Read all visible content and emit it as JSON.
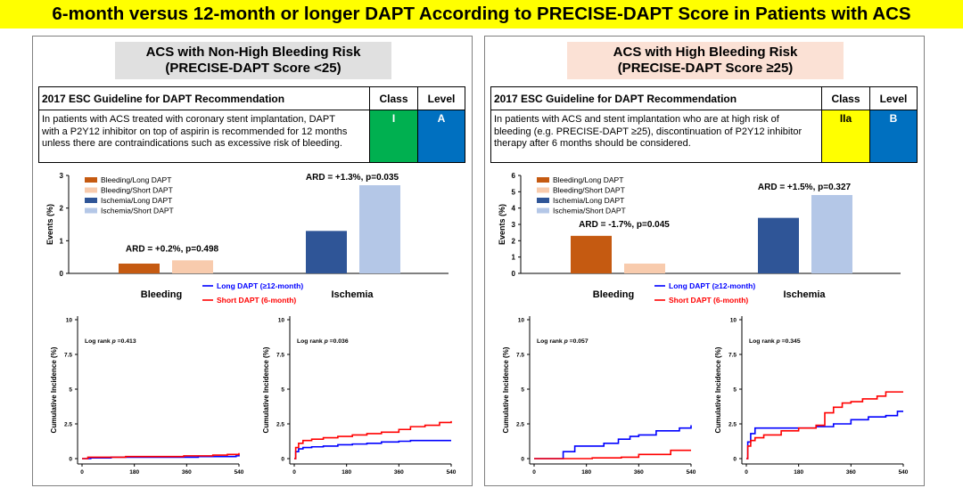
{
  "title": "6-month versus 12-month or longer DAPT According to PRECISE-DAPT Score in Patients with ACS",
  "colors": {
    "bleed_long": "#c55a11",
    "bleed_short": "#f8cbad",
    "isch_long": "#2f5597",
    "isch_short": "#b4c7e7",
    "km_long": "#0000ff",
    "km_short": "#ff0000",
    "class_I": "#00b050",
    "class_IIa": "#ffff00",
    "level": "#0070c0"
  },
  "panels": [
    {
      "title_line1": "ACS with Non-High Bleeding Risk",
      "title_line2": "(PRECISE-DAPT Score <25)",
      "guideline": {
        "header": "2017 ESC Guideline for DAPT Recommendation",
        "class_header": "Class",
        "level_header": "Level",
        "text_lines": [
          "In patients with ACS treated with coronary stent implantation, DAPT",
          "with a P2Y12 inhibitor on top of aspirin is recommended for 12 months",
          "unless there are contraindications such as excessive risk of bleeding."
        ],
        "class_value": "I",
        "level_value": "A"
      }
    },
    {
      "title_line1": "ACS with High Bleeding Risk",
      "title_line2": "(PRECISE-DAPT Score ≥25)",
      "guideline": {
        "header": "2017 ESC Guideline for DAPT Recommendation",
        "class_header": "Class",
        "level_header": "Level",
        "text_lines": [
          "In patients with ACS and stent implantation who are at high risk of",
          "bleeding (e.g. PRECISE-DAPT ≥25), discontinuation of P2Y12 inhibitor",
          "therapy after 6 months should be considered."
        ],
        "class_value": "IIa",
        "level_value": "B"
      }
    }
  ],
  "chart_data": [
    {
      "type": "bar",
      "panel": 0,
      "ylabel": "Events (%)",
      "ylim": [
        0,
        3
      ],
      "yticks": [
        "0",
        "1",
        "2",
        "3"
      ],
      "categories": [
        "Bleeding",
        "Ischemia"
      ],
      "series": [
        {
          "name": "Bleeding/Long DAPT",
          "values": [
            0.3,
            null
          ]
        },
        {
          "name": "Bleeding/Short DAPT",
          "values": [
            0.4,
            null
          ]
        },
        {
          "name": "Ischemia/Long DAPT",
          "values": [
            null,
            1.3
          ]
        },
        {
          "name": "Ischemia/Short DAPT",
          "values": [
            null,
            2.7
          ]
        }
      ],
      "annotations": [
        "ARD = +0.2%, p=0.498",
        "ARD = +1.3%, p=0.035"
      ],
      "km_legend": [
        "Long DAPT (≥12-month)",
        "Short DAPT (6-month)"
      ]
    },
    {
      "type": "line",
      "panel": 0,
      "name": "bleeding-km",
      "ylabel": "Cumulative Incidence (%)",
      "ylim": [
        0,
        10
      ],
      "yticks": [
        "0",
        "2.5",
        "5",
        "7.5",
        "10"
      ],
      "xlim": [
        0,
        540
      ],
      "xticks": [
        "0",
        "180",
        "360",
        "540"
      ],
      "annotation_prefix": "Log rank ",
      "annotation_p": "p",
      "annotation_value": " =0.413",
      "series": [
        {
          "name": "Long DAPT (≥12-month)",
          "x": [
            0,
            30,
            100,
            200,
            300,
            400,
            500,
            530,
            540
          ],
          "y": [
            0,
            0.05,
            0.1,
            0.1,
            0.1,
            0.15,
            0.15,
            0.2,
            0.3
          ]
        },
        {
          "name": "Short DAPT (6-month)",
          "x": [
            0,
            20,
            60,
            150,
            250,
            350,
            400,
            450,
            500,
            540
          ],
          "y": [
            0,
            0.1,
            0.1,
            0.15,
            0.15,
            0.2,
            0.2,
            0.25,
            0.3,
            0.4
          ]
        }
      ]
    },
    {
      "type": "line",
      "panel": 0,
      "name": "ischemia-km",
      "ylabel": "Cumulative Incidence (%)",
      "ylim": [
        0,
        10
      ],
      "yticks": [
        "0",
        "2.5",
        "5",
        "7.5",
        "10"
      ],
      "xlim": [
        0,
        540
      ],
      "xticks": [
        "0",
        "180",
        "360",
        "540"
      ],
      "annotation_prefix": "Log rank ",
      "annotation_p": "p",
      "annotation_value": " =0.036",
      "series": [
        {
          "name": "Long DAPT (≥12-month)",
          "x": [
            0,
            5,
            15,
            30,
            60,
            100,
            150,
            200,
            250,
            300,
            360,
            400,
            450,
            500,
            540
          ],
          "y": [
            0,
            0.5,
            0.7,
            0.8,
            0.85,
            0.9,
            1.0,
            1.05,
            1.1,
            1.2,
            1.25,
            1.3,
            1.3,
            1.3,
            1.3
          ]
        },
        {
          "name": "Short DAPT (6-month)",
          "x": [
            0,
            5,
            15,
            30,
            60,
            100,
            150,
            200,
            250,
            300,
            360,
            400,
            450,
            500,
            540
          ],
          "y": [
            0,
            0.8,
            1.1,
            1.3,
            1.4,
            1.5,
            1.6,
            1.7,
            1.8,
            1.9,
            2.1,
            2.3,
            2.4,
            2.6,
            2.7
          ]
        }
      ]
    },
    {
      "type": "bar",
      "panel": 1,
      "ylabel": "Events (%)",
      "ylim": [
        0,
        6
      ],
      "yticks": [
        "0",
        "1",
        "2",
        "3",
        "4",
        "5",
        "6"
      ],
      "categories": [
        "Bleeding",
        "Ischemia"
      ],
      "series": [
        {
          "name": "Bleeding/Long DAPT",
          "values": [
            2.3,
            null
          ]
        },
        {
          "name": "Bleeding/Short DAPT",
          "values": [
            0.6,
            null
          ]
        },
        {
          "name": "Ischemia/Long DAPT",
          "values": [
            null,
            3.4
          ]
        },
        {
          "name": "Ischemia/Short DAPT",
          "values": [
            null,
            4.8
          ]
        }
      ],
      "annotations": [
        "ARD = -1.7%, p=0.045",
        "ARD = +1.5%, p=0.327"
      ],
      "km_legend": [
        "Long DAPT (≥12-month)",
        "Short DAPT (6-month)"
      ]
    },
    {
      "type": "line",
      "panel": 1,
      "name": "bleeding-km",
      "ylabel": "Cumulative Incidence (%)",
      "ylim": [
        0,
        10
      ],
      "yticks": [
        "0",
        "2.5",
        "5",
        "7.5",
        "10"
      ],
      "xlim": [
        0,
        540
      ],
      "xticks": [
        "0",
        "180",
        "360",
        "540"
      ],
      "annotation_prefix": "Log rank ",
      "annotation_p": "p",
      "annotation_value": " =0.057",
      "series": [
        {
          "name": "Long DAPT (≥12-month)",
          "x": [
            0,
            80,
            100,
            140,
            180,
            240,
            290,
            330,
            360,
            420,
            470,
            500,
            540
          ],
          "y": [
            0,
            0,
            0.5,
            0.9,
            0.9,
            1.1,
            1.4,
            1.6,
            1.7,
            2.0,
            2.0,
            2.2,
            2.4
          ]
        },
        {
          "name": "Short DAPT (6-month)",
          "x": [
            0,
            150,
            200,
            300,
            360,
            470,
            540
          ],
          "y": [
            0,
            0,
            0.05,
            0.1,
            0.3,
            0.6,
            0.6
          ]
        }
      ]
    },
    {
      "type": "line",
      "panel": 1,
      "name": "ischemia-km",
      "ylabel": "Cumulative Incidence (%)",
      "ylim": [
        0,
        10
      ],
      "yticks": [
        "0",
        "2.5",
        "5",
        "7.5",
        "10"
      ],
      "xlim": [
        0,
        540
      ],
      "xticks": [
        "0",
        "180",
        "360",
        "540"
      ],
      "annotation_prefix": "Log rank ",
      "annotation_p": "p",
      "annotation_value": " =0.345",
      "series": [
        {
          "name": "Long DAPT (≥12-month)",
          "x": [
            0,
            5,
            15,
            30,
            60,
            120,
            180,
            240,
            300,
            360,
            420,
            480,
            520,
            540
          ],
          "y": [
            0,
            1.2,
            1.8,
            2.2,
            2.2,
            2.2,
            2.2,
            2.3,
            2.5,
            2.8,
            3.0,
            3.1,
            3.4,
            3.4
          ]
        },
        {
          "name": "Short DAPT (6-month)",
          "x": [
            0,
            5,
            15,
            30,
            60,
            120,
            180,
            240,
            270,
            300,
            330,
            360,
            400,
            450,
            480,
            540
          ],
          "y": [
            0,
            0.9,
            1.3,
            1.5,
            1.7,
            2.0,
            2.2,
            2.4,
            3.3,
            3.7,
            4.0,
            4.1,
            4.3,
            4.5,
            4.8,
            4.8
          ]
        }
      ]
    }
  ]
}
